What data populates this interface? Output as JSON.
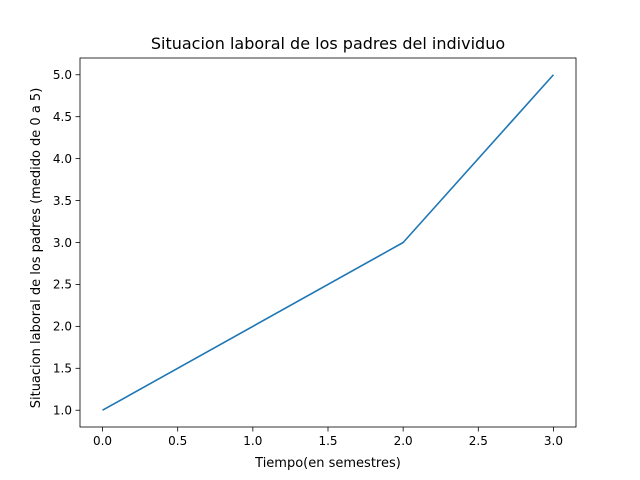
{
  "chart_data": {
    "type": "line",
    "title": "Situacion laboral de los padres del individuo",
    "xlabel": "Tiempo(en semestres)",
    "ylabel": "Situacion laboral de los padres (medido de 0 a 5)",
    "x": [
      0.0,
      2.0,
      3.0
    ],
    "series": [
      {
        "values": [
          1.0,
          3.0,
          5.0
        ],
        "color": "#1f77b4"
      }
    ],
    "xlim": [
      -0.15,
      3.15
    ],
    "ylim": [
      0.8,
      5.2
    ],
    "xticks": [
      "0.0",
      "0.5",
      "1.0",
      "1.5",
      "2.0",
      "2.5",
      "3.0"
    ],
    "yticks": [
      "1.0",
      "1.5",
      "2.0",
      "2.5",
      "3.0",
      "3.5",
      "4.0",
      "4.5",
      "5.0"
    ],
    "grid": false,
    "legend": "none"
  }
}
